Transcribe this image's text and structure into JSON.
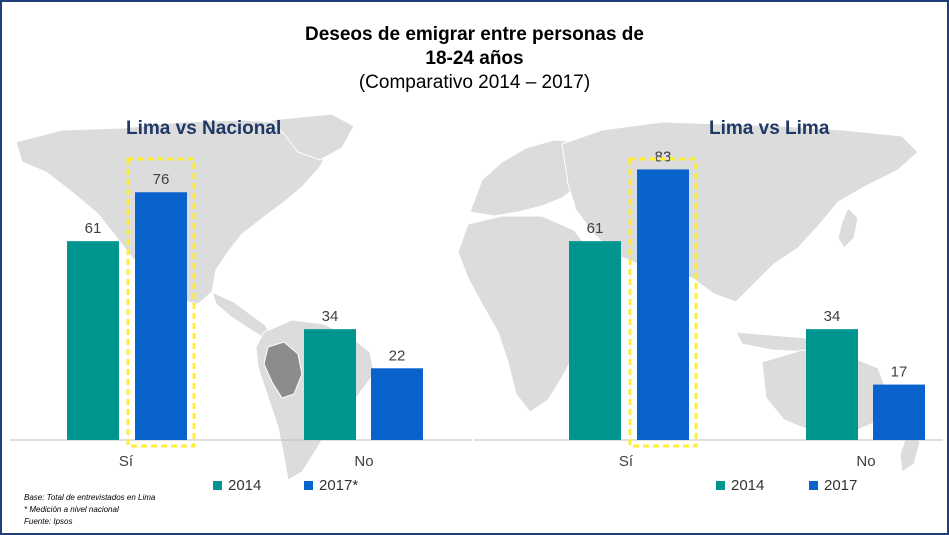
{
  "title": {
    "line1": "Deseos de emigrar entre personas de",
    "line2": "18-24 años",
    "line3": "(Comparativo 2014 – 2017)"
  },
  "colors": {
    "teal": "#00968f",
    "blue": "#0a63cc",
    "highlight": "#ffee33",
    "panel_title": "#1f3864"
  },
  "chart_data": [
    {
      "type": "bar",
      "title": "Lima vs Nacional",
      "categories": [
        "Sí",
        "No"
      ],
      "series": [
        {
          "name": "2014",
          "values": [
            61,
            34
          ]
        },
        {
          "name": "2017*",
          "values": [
            76,
            22
          ]
        }
      ],
      "data_labels": true,
      "highlight": "2017 Sí bar outlined with a dashed yellow box",
      "legend_position": "bottom"
    },
    {
      "type": "bar",
      "title": "Lima vs Lima",
      "categories": [
        "Sí",
        "No"
      ],
      "series": [
        {
          "name": "2014",
          "values": [
            61,
            34
          ]
        },
        {
          "name": "2017",
          "values": [
            83,
            17
          ]
        }
      ],
      "data_labels": true,
      "highlight": "2017 Sí bar outlined with a dashed yellow box",
      "legend_position": "bottom"
    }
  ],
  "footnotes": [
    "Base: Total de entrevistados en Lima",
    "* Medición a nivel nacional",
    "Fuente: Ipsos"
  ]
}
